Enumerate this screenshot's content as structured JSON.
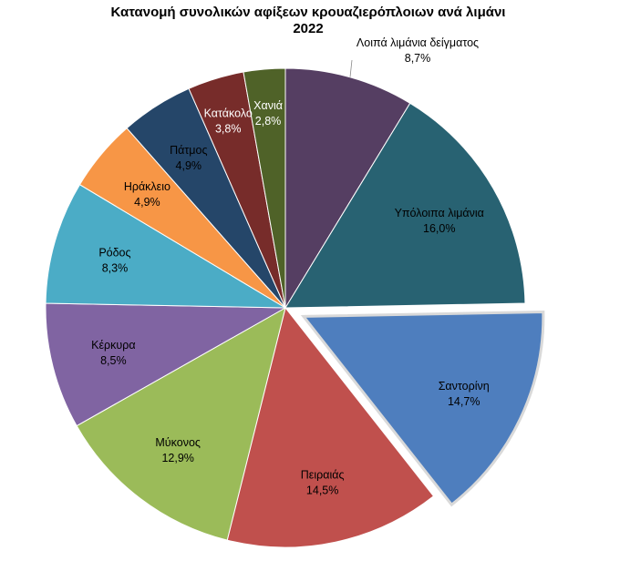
{
  "chart_data": {
    "type": "pie",
    "title_lines": [
      "Κατανομή συνολικών αφίξεων κρουαζιερόπλοιων ανά λιμάνι",
      "2022"
    ],
    "slices": [
      {
        "label": "Λοιπά λιμάνια δείγματος",
        "value_label": "8,7%",
        "value": 8.7,
        "color": "#553E62",
        "text_color": "#000000",
        "exploded": false
      },
      {
        "label": "Υπόλοιπα λιμάνια",
        "value_label": "16,0%",
        "value": 16.0,
        "color": "#286272",
        "text_color": "#000000",
        "exploded": false
      },
      {
        "label": "Σαντορίνη",
        "value_label": "14,7%",
        "value": 14.7,
        "color": "#4E7EBE",
        "text_color": "#000000",
        "exploded": true
      },
      {
        "label": "Πειραιάς",
        "value_label": "14,5%",
        "value": 14.5,
        "color": "#C0504D",
        "text_color": "#000000",
        "exploded": false
      },
      {
        "label": "Μύκονος",
        "value_label": "12,9%",
        "value": 12.9,
        "color": "#9BBB59",
        "text_color": "#000000",
        "exploded": false
      },
      {
        "label": "Κέρκυρα",
        "value_label": "8,5%",
        "value": 8.5,
        "color": "#8064A2",
        "text_color": "#000000",
        "exploded": false
      },
      {
        "label": "Ρόδος",
        "value_label": "8,3%",
        "value": 8.3,
        "color": "#4BACC6",
        "text_color": "#000000",
        "exploded": false
      },
      {
        "label": "Ηράκλειο",
        "value_label": "4,9%",
        "value": 4.9,
        "color": "#F79646",
        "text_color": "#000000",
        "exploded": false
      },
      {
        "label": "Πάτμος",
        "value_label": "4,9%",
        "value": 4.9,
        "color": "#254669",
        "text_color": "#000000",
        "exploded": false
      },
      {
        "label": "Κατάκολο",
        "value_label": "3,8%",
        "value": 3.8,
        "color": "#772C2A",
        "text_color": "#ffffff",
        "exploded": false
      },
      {
        "label": "Χανιά",
        "value_label": "2,8%",
        "value": 2.8,
        "color": "#4F6228",
        "text_color": "#ffffff",
        "exploded": false
      }
    ],
    "start_angle_deg": 0,
    "direction": "clockwise",
    "legend": "none",
    "data_labels": "inside"
  }
}
